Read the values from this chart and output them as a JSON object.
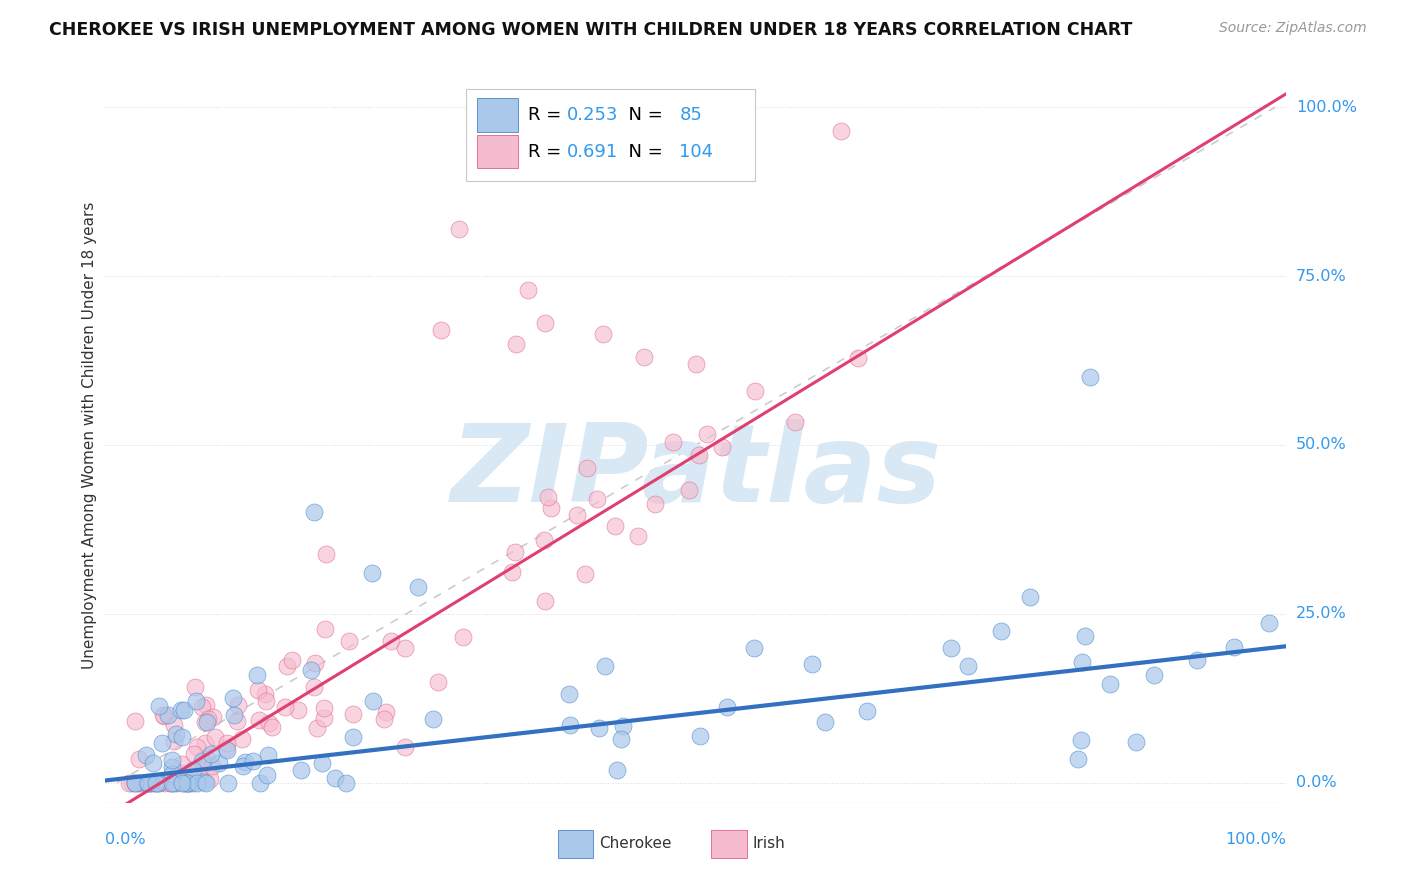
{
  "title": "CHEROKEE VS IRISH UNEMPLOYMENT AMONG WOMEN WITH CHILDREN UNDER 18 YEARS CORRELATION CHART",
  "source": "Source: ZipAtlas.com",
  "ylabel": "Unemployment Among Women with Children Under 18 years",
  "ytick_labels": [
    "0.0%",
    "25.0%",
    "50.0%",
    "75.0%",
    "100.0%"
  ],
  "ytick_values": [
    0.0,
    0.25,
    0.5,
    0.75,
    1.0
  ],
  "xlim": [
    -0.01,
    1.01
  ],
  "ylim": [
    -0.03,
    1.06
  ],
  "cherokee_R": 0.253,
  "cherokee_N": 85,
  "irish_R": 0.691,
  "irish_N": 104,
  "cherokee_color": "#aac8ea",
  "cherokee_edge_color": "#4488cc",
  "cherokee_line_color": "#3370c0",
  "irish_color": "#f5bcd0",
  "irish_edge_color": "#e06080",
  "irish_line_color": "#e04070",
  "ref_line_color": "#cccccc",
  "watermark_color": "#d8e8f4",
  "background_color": "#ffffff",
  "grid_color": "#d8d8d8",
  "title_color": "#111111",
  "source_color": "#999999",
  "tick_label_color": "#3399ee",
  "axis_label_color": "#333333",
  "cherokee_slope": 0.195,
  "cherokee_intercept": 0.005,
  "irish_slope": 1.05,
  "irish_intercept": -0.04
}
